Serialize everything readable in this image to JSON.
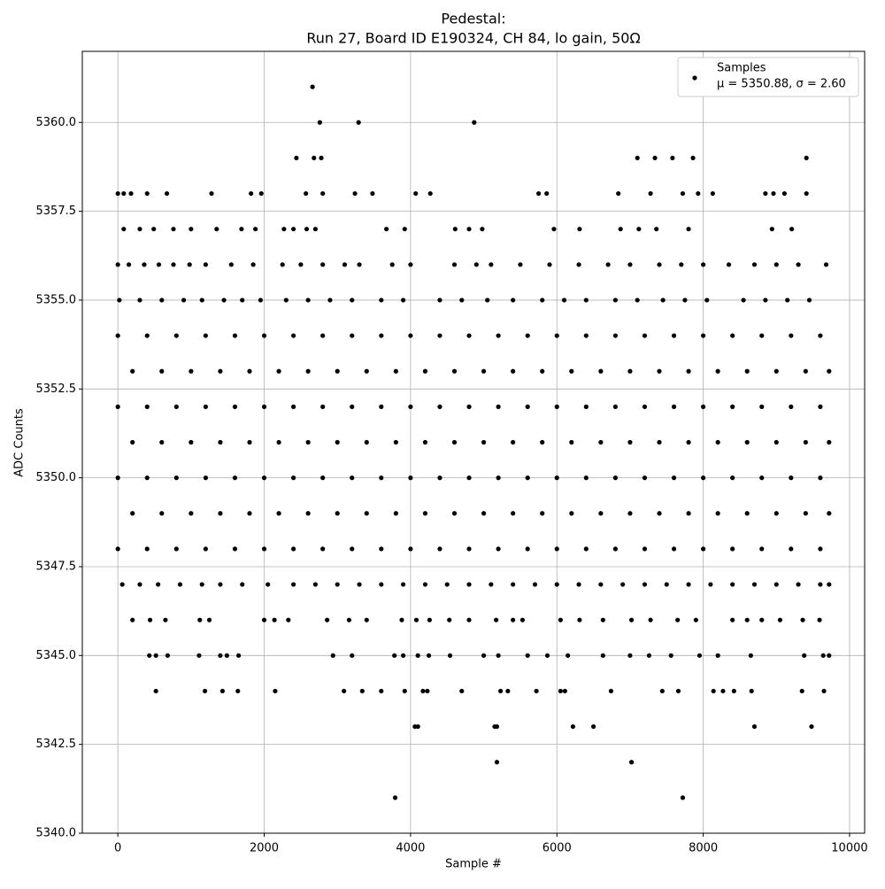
{
  "chart_data": {
    "type": "scatter",
    "title": "Pedestal:",
    "subtitle": "Run 27, Board ID E190324, CH 84, lo gain, 50Ω",
    "xlabel": "Sample #",
    "ylabel": "ADC Counts",
    "legend_stats": "μ = 5350.88, σ = 2.60",
    "legend": "upper right",
    "grid": true,
    "xlim": [
      -486,
      10206
    ],
    "ylim": [
      5340,
      5362
    ],
    "xticks": [
      0,
      2000,
      4000,
      6000,
      8000,
      10000
    ],
    "yticks": [
      {
        "value": 5340,
        "label": "5340.0"
      },
      5342.5,
      {
        "value": 5345,
        "label": "5345.0"
      },
      5347.5,
      {
        "value": 5350,
        "label": "5350.0"
      },
      5352.5,
      {
        "value": 5355,
        "label": "5355.0"
      },
      5357.5,
      {
        "value": 5360,
        "label": "5360.0"
      }
    ],
    "x": [
      2660,
      2760,
      3290,
      4870,
      2440,
      2680,
      2780,
      7100,
      7340,
      7580,
      7860,
      9410,
      0,
      80,
      180,
      400,
      670,
      1280,
      1820,
      1960,
      2570,
      2800,
      3240,
      3480,
      4070,
      4270,
      5750,
      5860,
      6840,
      7280,
      7720,
      7930,
      8130,
      8850,
      8960,
      9110,
      9410,
      80,
      300,
      490,
      760,
      1000,
      1350,
      1690,
      1880,
      2270,
      2400,
      2580,
      2700,
      3670,
      3920,
      4610,
      4800,
      4980,
      5960,
      6310,
      6870,
      7120,
      7360,
      7800,
      8940,
      9210,
      0,
      150,
      360,
      560,
      760,
      980,
      1200,
      1550,
      1850,
      2250,
      2500,
      2800,
      3100,
      3300,
      3750,
      4000,
      4600,
      4900,
      5100,
      5500,
      5900,
      6300,
      6700,
      7000,
      7400,
      7700,
      8000,
      8350,
      8700,
      9000,
      9300,
      9680,
      20,
      300,
      600,
      900,
      1150,
      1450,
      1700,
      1950,
      2300,
      2600,
      2900,
      3200,
      3600,
      3900,
      4400,
      4700,
      5050,
      5400,
      5800,
      6100,
      6400,
      6800,
      7100,
      7450,
      7750,
      8050,
      8550,
      8850,
      9150,
      9450,
      0,
      400,
      800,
      1200,
      1600,
      2000,
      2400,
      2800,
      3200,
      3600,
      4000,
      4400,
      4800,
      5200,
      5600,
      6000,
      6400,
      6800,
      7200,
      7600,
      8000,
      8400,
      8800,
      9200,
      9600,
      200,
      600,
      1000,
      1400,
      1800,
      2200,
      2600,
      3000,
      3400,
      3800,
      4200,
      4600,
      5000,
      5400,
      5800,
      6200,
      6600,
      7000,
      7400,
      7800,
      8200,
      8600,
      9000,
      9400,
      9720,
      0,
      400,
      800,
      1200,
      1600,
      2000,
      2400,
      2800,
      3200,
      3600,
      4000,
      4400,
      4800,
      5200,
      5600,
      6000,
      6400,
      6800,
      7200,
      7600,
      8000,
      8400,
      8800,
      9200,
      9600,
      200,
      600,
      1000,
      1400,
      1800,
      2200,
      2600,
      3000,
      3400,
      3800,
      4200,
      4600,
      5000,
      5400,
      5800,
      6200,
      6600,
      7000,
      7400,
      7800,
      8200,
      8600,
      9000,
      9400,
      9720,
      0,
      400,
      800,
      1200,
      1600,
      2000,
      2400,
      2800,
      3200,
      3600,
      4000,
      4400,
      4800,
      5200,
      5600,
      6000,
      6400,
      6800,
      7200,
      7600,
      8000,
      8400,
      8800,
      9200,
      9600,
      200,
      600,
      1000,
      1400,
      1800,
      2200,
      2600,
      3000,
      3400,
      3800,
      4200,
      4600,
      5000,
      5400,
      5800,
      6200,
      6600,
      7000,
      7400,
      7800,
      8200,
      8600,
      9000,
      9400,
      9720,
      0,
      400,
      800,
      1200,
      1600,
      2000,
      2400,
      2800,
      3200,
      3600,
      4000,
      4400,
      4800,
      5200,
      5600,
      6000,
      6400,
      6800,
      7200,
      7600,
      8000,
      8400,
      8800,
      9200,
      9600,
      60,
      300,
      550,
      850,
      1150,
      1400,
      1700,
      2050,
      2400,
      2700,
      3000,
      3300,
      3600,
      3900,
      4200,
      4500,
      4800,
      5100,
      5400,
      5700,
      6000,
      6300,
      6600,
      6900,
      7200,
      7500,
      7800,
      8100,
      8400,
      8700,
      9000,
      9300,
      9600,
      9720,
      200,
      440,
      650,
      1120,
      1250,
      2000,
      2140,
      2330,
      2860,
      3160,
      3400,
      3880,
      4080,
      4260,
      4530,
      4800,
      5170,
      5400,
      5530,
      6050,
      6310,
      6630,
      7020,
      7280,
      7650,
      7900,
      8400,
      8600,
      8800,
      9050,
      9360,
      9590,
      430,
      520,
      680,
      1110,
      1400,
      1490,
      1650,
      2940,
      3200,
      3780,
      3900,
      4100,
      4250,
      4540,
      5000,
      5200,
      5600,
      5870,
      6150,
      6630,
      7000,
      7260,
      7560,
      7950,
      8200,
      8650,
      9380,
      9640,
      9720,
      520,
      1190,
      1430,
      1640,
      2150,
      3090,
      3340,
      3600,
      3920,
      4170,
      4230,
      4700,
      5230,
      5330,
      5720,
      6050,
      6110,
      6740,
      7440,
      7660,
      8140,
      8270,
      8420,
      8660,
      9350,
      9650,
      4060,
      4100,
      5150,
      5180,
      6220,
      6500,
      8700,
      9480,
      5180,
      7020,
      3790,
      7720
    ],
    "series": [
      {
        "name": "Samples",
        "color": "#000000",
        "values": [
          5361,
          5360,
          5360,
          5360,
          5359,
          5359,
          5359,
          5359,
          5359,
          5359,
          5359,
          5359,
          5358,
          5358,
          5358,
          5358,
          5358,
          5358,
          5358,
          5358,
          5358,
          5358,
          5358,
          5358,
          5358,
          5358,
          5358,
          5358,
          5358,
          5358,
          5358,
          5358,
          5358,
          5358,
          5358,
          5358,
          5358,
          5357,
          5357,
          5357,
          5357,
          5357,
          5357,
          5357,
          5357,
          5357,
          5357,
          5357,
          5357,
          5357,
          5357,
          5357,
          5357,
          5357,
          5357,
          5357,
          5357,
          5357,
          5357,
          5357,
          5357,
          5357,
          5356,
          5356,
          5356,
          5356,
          5356,
          5356,
          5356,
          5356,
          5356,
          5356,
          5356,
          5356,
          5356,
          5356,
          5356,
          5356,
          5356,
          5356,
          5356,
          5356,
          5356,
          5356,
          5356,
          5356,
          5356,
          5356,
          5356,
          5356,
          5356,
          5356,
          5356,
          5356,
          5355,
          5355,
          5355,
          5355,
          5355,
          5355,
          5355,
          5355,
          5355,
          5355,
          5355,
          5355,
          5355,
          5355,
          5355,
          5355,
          5355,
          5355,
          5355,
          5355,
          5355,
          5355,
          5355,
          5355,
          5355,
          5355,
          5355,
          5355,
          5355,
          5355,
          5354,
          5354,
          5354,
          5354,
          5354,
          5354,
          5354,
          5354,
          5354,
          5354,
          5354,
          5354,
          5354,
          5354,
          5354,
          5354,
          5354,
          5354,
          5354,
          5354,
          5354,
          5354,
          5354,
          5354,
          5354,
          5353,
          5353,
          5353,
          5353,
          5353,
          5353,
          5353,
          5353,
          5353,
          5353,
          5353,
          5353,
          5353,
          5353,
          5353,
          5353,
          5353,
          5353,
          5353,
          5353,
          5353,
          5353,
          5353,
          5353,
          5353,
          5352,
          5352,
          5352,
          5352,
          5352,
          5352,
          5352,
          5352,
          5352,
          5352,
          5352,
          5352,
          5352,
          5352,
          5352,
          5352,
          5352,
          5352,
          5352,
          5352,
          5352,
          5352,
          5352,
          5352,
          5352,
          5351,
          5351,
          5351,
          5351,
          5351,
          5351,
          5351,
          5351,
          5351,
          5351,
          5351,
          5351,
          5351,
          5351,
          5351,
          5351,
          5351,
          5351,
          5351,
          5351,
          5351,
          5351,
          5351,
          5351,
          5351,
          5350,
          5350,
          5350,
          5350,
          5350,
          5350,
          5350,
          5350,
          5350,
          5350,
          5350,
          5350,
          5350,
          5350,
          5350,
          5350,
          5350,
          5350,
          5350,
          5350,
          5350,
          5350,
          5350,
          5350,
          5350,
          5349,
          5349,
          5349,
          5349,
          5349,
          5349,
          5349,
          5349,
          5349,
          5349,
          5349,
          5349,
          5349,
          5349,
          5349,
          5349,
          5349,
          5349,
          5349,
          5349,
          5349,
          5349,
          5349,
          5349,
          5349,
          5348,
          5348,
          5348,
          5348,
          5348,
          5348,
          5348,
          5348,
          5348,
          5348,
          5348,
          5348,
          5348,
          5348,
          5348,
          5348,
          5348,
          5348,
          5348,
          5348,
          5348,
          5348,
          5348,
          5348,
          5348,
          5347,
          5347,
          5347,
          5347,
          5347,
          5347,
          5347,
          5347,
          5347,
          5347,
          5347,
          5347,
          5347,
          5347,
          5347,
          5347,
          5347,
          5347,
          5347,
          5347,
          5347,
          5347,
          5347,
          5347,
          5347,
          5347,
          5347,
          5347,
          5347,
          5347,
          5347,
          5347,
          5347,
          5347,
          5346,
          5346,
          5346,
          5346,
          5346,
          5346,
          5346,
          5346,
          5346,
          5346,
          5346,
          5346,
          5346,
          5346,
          5346,
          5346,
          5346,
          5346,
          5346,
          5346,
          5346,
          5346,
          5346,
          5346,
          5346,
          5346,
          5346,
          5346,
          5346,
          5346,
          5346,
          5346,
          5345,
          5345,
          5345,
          5345,
          5345,
          5345,
          5345,
          5345,
          5345,
          5345,
          5345,
          5345,
          5345,
          5345,
          5345,
          5345,
          5345,
          5345,
          5345,
          5345,
          5345,
          5345,
          5345,
          5345,
          5345,
          5345,
          5345,
          5345,
          5345,
          5344,
          5344,
          5344,
          5344,
          5344,
          5344,
          5344,
          5344,
          5344,
          5344,
          5344,
          5344,
          5344,
          5344,
          5344,
          5344,
          5344,
          5344,
          5344,
          5344,
          5344,
          5344,
          5344,
          5344,
          5344,
          5344,
          5343,
          5343,
          5343,
          5343,
          5343,
          5343,
          5343,
          5343,
          5342,
          5342,
          5341,
          5341
        ]
      }
    ]
  }
}
